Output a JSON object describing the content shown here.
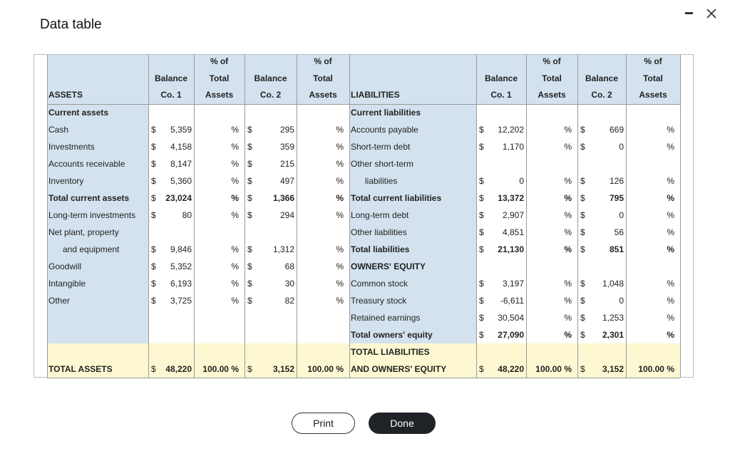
{
  "title": "Data table",
  "left": {
    "header": [
      [
        "ASSETS"
      ],
      [
        "Balance",
        "Co. 1"
      ],
      [
        "% of",
        "Total",
        "Assets"
      ],
      [
        "Balance",
        "Co. 2"
      ],
      [
        "% of",
        "Total",
        "Assets"
      ]
    ],
    "rows": [
      {
        "label": "Current assets",
        "bold": true
      },
      {
        "label": "Cash",
        "co1": [
          "$",
          "5,359"
        ],
        "pct1": "%",
        "co2": [
          "$",
          "295"
        ],
        "pct2": "%"
      },
      {
        "label": "Investments",
        "co1": [
          "$",
          "4,158"
        ],
        "pct1": "%",
        "co2": [
          "$",
          "359"
        ],
        "pct2": "%"
      },
      {
        "label": "Accounts receivable",
        "co1": [
          "$",
          "8,147"
        ],
        "pct1": "%",
        "co2": [
          "$",
          "215"
        ],
        "pct2": "%"
      },
      {
        "label": "Inventory",
        "co1": [
          "$",
          "5,360"
        ],
        "pct1": "%",
        "co2": [
          "$",
          "497"
        ],
        "pct2": "%"
      },
      {
        "label": "Total current assets",
        "bold": true,
        "co1": [
          "$",
          "23,024"
        ],
        "pct1": "%",
        "co2": [
          "$",
          "1,366"
        ],
        "pct2": "%"
      },
      {
        "label": "Long-term investments",
        "co1": [
          "$",
          "80"
        ],
        "pct1": "%",
        "co2": [
          "$",
          "294"
        ],
        "pct2": "%"
      },
      {
        "label": "Net plant, property"
      },
      {
        "label": "and equipment",
        "indent": true,
        "co1": [
          "$",
          "9,846"
        ],
        "pct1": "%",
        "co2": [
          "$",
          "1,312"
        ],
        "pct2": "%"
      },
      {
        "label": "Goodwill",
        "co1": [
          "$",
          "5,352"
        ],
        "pct1": "%",
        "co2": [
          "$",
          "68"
        ],
        "pct2": "%"
      },
      {
        "label": "Intangible",
        "co1": [
          "$",
          "6,193"
        ],
        "pct1": "%",
        "co2": [
          "$",
          "30"
        ],
        "pct2": "%"
      },
      {
        "label": "Other",
        "co1": [
          "$",
          "3,725"
        ],
        "pct1": "%",
        "co2": [
          "$",
          "82"
        ],
        "pct2": "%"
      },
      {},
      {},
      {
        "highlight": true
      },
      {
        "label": "TOTAL ASSETS",
        "bold": true,
        "highlight": true,
        "co1": [
          "$",
          "48,220"
        ],
        "pct1": "100.00 %",
        "co2": [
          "$",
          "3,152"
        ],
        "pct2": "100.00 %"
      }
    ]
  },
  "right": {
    "header": [
      [
        "LIABILITIES"
      ],
      [
        "Balance",
        "Co. 1"
      ],
      [
        "% of",
        "Total",
        "Assets"
      ],
      [
        "Balance",
        "Co. 2"
      ],
      [
        "% of",
        "Total",
        "Assets"
      ]
    ],
    "rows": [
      {
        "label": "Current liabilities",
        "bold": true
      },
      {
        "label": "Accounts payable",
        "co1": [
          "$",
          "12,202"
        ],
        "pct1": "%",
        "co2": [
          "$",
          "669"
        ],
        "pct2": "%"
      },
      {
        "label": "Short-term debt",
        "co1": [
          "$",
          "1,170"
        ],
        "pct1": "%",
        "co2": [
          "$",
          "0"
        ],
        "pct2": "%"
      },
      {
        "label": "Other short-term"
      },
      {
        "label": "liabilities",
        "indent": true,
        "co1": [
          "$",
          "0"
        ],
        "pct1": "%",
        "co2": [
          "$",
          "126"
        ],
        "pct2": "%"
      },
      {
        "label": "Total current liabilities",
        "bold": true,
        "co1": [
          "$",
          "13,372"
        ],
        "pct1": "%",
        "co2": [
          "$",
          "795"
        ],
        "pct2": "%"
      },
      {
        "label": "Long-term debt",
        "co1": [
          "$",
          "2,907"
        ],
        "pct1": "%",
        "co2": [
          "$",
          "0"
        ],
        "pct2": "%"
      },
      {
        "label": "Other liabilities",
        "co1": [
          "$",
          "4,851"
        ],
        "pct1": "%",
        "co2": [
          "$",
          "56"
        ],
        "pct2": "%"
      },
      {
        "label": "Total liabilities",
        "bold": true,
        "co1": [
          "$",
          "21,130"
        ],
        "pct1": "%",
        "co2": [
          "$",
          "851"
        ],
        "pct2": "%"
      },
      {
        "label": "OWNERS' EQUITY",
        "bold": true
      },
      {
        "label": "Common stock",
        "co1": [
          "$",
          "3,197"
        ],
        "pct1": "%",
        "co2": [
          "$",
          "1,048"
        ],
        "pct2": "%"
      },
      {
        "label": "Treasury stock",
        "co1": [
          "$",
          "-6,611"
        ],
        "pct1": "%",
        "co2": [
          "$",
          "0"
        ],
        "pct2": "%"
      },
      {
        "label": "Retained earnings",
        "co1": [
          "$",
          "30,504"
        ],
        "pct1": "%",
        "co2": [
          "$",
          "1,253"
        ],
        "pct2": "%"
      },
      {
        "label": "Total owners' equity",
        "bold": true,
        "co1": [
          "$",
          "27,090"
        ],
        "pct1": "%",
        "co2": [
          "$",
          "2,301"
        ],
        "pct2": "%"
      },
      {
        "label": "TOTAL LIABILITIES",
        "bold": true,
        "highlight": true
      },
      {
        "label": "AND OWNERS' EQUITY",
        "bold": true,
        "highlight": true,
        "co1": [
          "$",
          "48,220"
        ],
        "pct1": "100.00 %",
        "co2": [
          "$",
          "3,152"
        ],
        "pct2": "100.00 %"
      }
    ]
  },
  "buttons": [
    "Print",
    "Done"
  ]
}
